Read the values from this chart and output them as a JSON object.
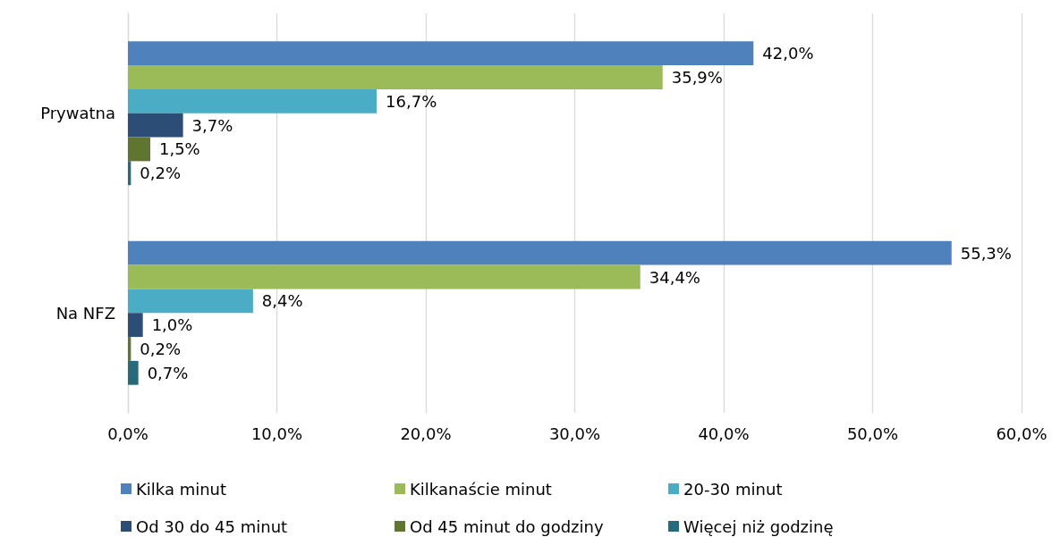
{
  "chart_data": {
    "type": "bar",
    "orientation": "horizontal",
    "categories": [
      "Prywatna",
      "Na NFZ"
    ],
    "series": [
      {
        "name": "Kilka minut",
        "color": "#4f81bd",
        "values": [
          42.0,
          55.3
        ],
        "value_labels": [
          "42,0%",
          "55,3%"
        ]
      },
      {
        "name": "Kilkanaście minut",
        "color": "#9bbb59",
        "values": [
          35.9,
          34.4
        ],
        "value_labels": [
          "35,9%",
          "34,4%"
        ]
      },
      {
        "name": "20-30 minut",
        "color": "#4bacc6",
        "values": [
          16.7,
          8.4
        ],
        "value_labels": [
          "16,7%",
          "8,4%"
        ]
      },
      {
        "name": "Od 30 do 45 minut",
        "color": "#2c4d75",
        "values": [
          3.7,
          1.0
        ],
        "value_labels": [
          "3,7%",
          "1,0%"
        ]
      },
      {
        "name": "Od 45 minut do godziny",
        "color": "#5f7530",
        "values": [
          1.5,
          0.2
        ],
        "value_labels": [
          "1,5%",
          "0,2%"
        ]
      },
      {
        "name": "Więcej niż godzinę",
        "color": "#276a7c",
        "values": [
          0.2,
          0.7
        ],
        "value_labels": [
          "0,2%",
          "0,7%"
        ]
      }
    ],
    "xlim": [
      0,
      60
    ],
    "xticks": [
      {
        "value": 0,
        "label": "0,0%"
      },
      {
        "value": 10,
        "label": "10,0%"
      },
      {
        "value": 20,
        "label": "20,0%"
      },
      {
        "value": 30,
        "label": "30,0%"
      },
      {
        "value": 40,
        "label": "40,0%"
      },
      {
        "value": 50,
        "label": "50,0%"
      },
      {
        "value": 60,
        "label": "60,0%"
      }
    ],
    "grid": "x",
    "legend": "bottom"
  }
}
